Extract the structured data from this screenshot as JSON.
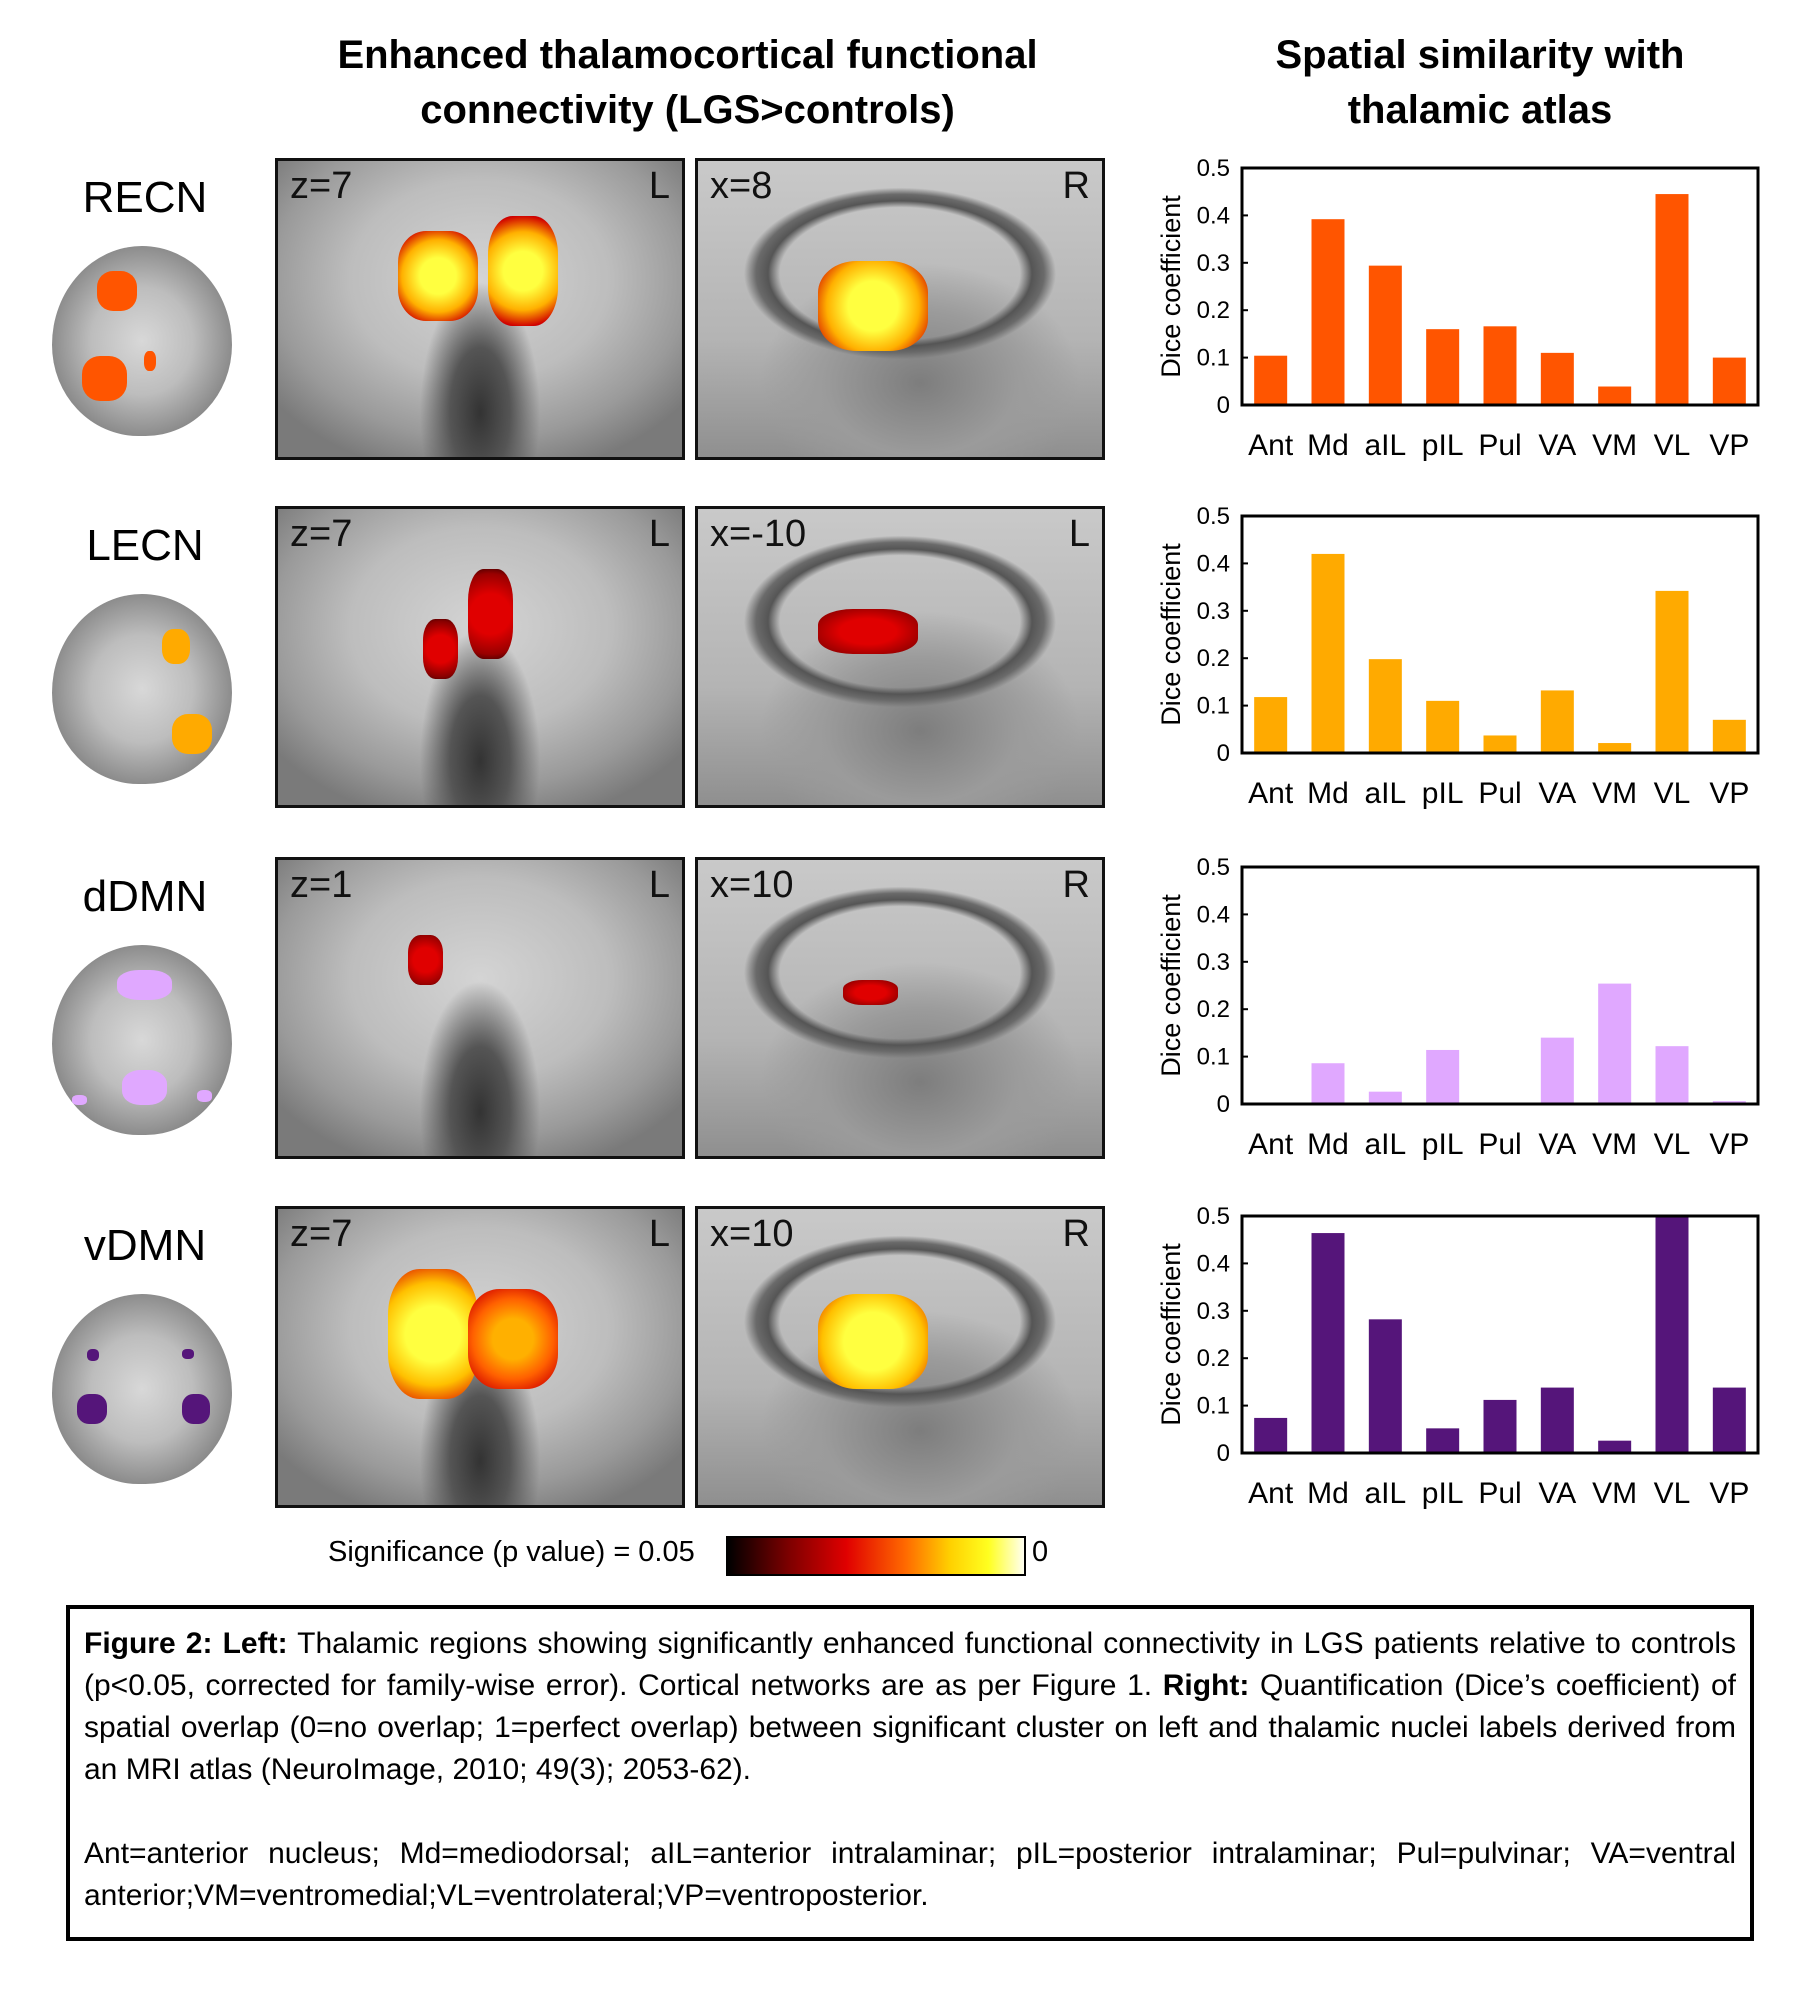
{
  "titles": {
    "left_line1": "Enhanced thalamocortical functional",
    "left_line2": "connectivity (LGS>controls)",
    "right_line1": "Spatial similarity with",
    "right_line2": "thalamic atlas"
  },
  "rows": [
    {
      "network": "RECN",
      "color": "#FF5500",
      "axial_label": "z=7",
      "axial_side": "L",
      "sagittal_label": "x=8",
      "sagittal_side": "R"
    },
    {
      "network": "LECN",
      "color": "#FFAA00",
      "axial_label": "z=7",
      "axial_side": "L",
      "sagittal_label": "x=-10",
      "sagittal_side": "L"
    },
    {
      "network": "dDMN",
      "color": "#E0A8FF",
      "axial_label": "z=1",
      "axial_side": "L",
      "sagittal_label": "x=10",
      "sagittal_side": "R"
    },
    {
      "network": "vDMN",
      "color": "#55157A",
      "axial_label": "z=7",
      "axial_side": "L",
      "sagittal_label": "x=10",
      "sagittal_side": "R"
    }
  ],
  "colorbar": {
    "label": "Significance (p value) = 0.05",
    "max_label": "0"
  },
  "chart_data": [
    {
      "type": "bar",
      "network": "RECN",
      "ylabel": "Dice coefficient",
      "ylim": [
        0,
        0.5
      ],
      "yticks": [
        "0",
        "0.1",
        "0.2",
        "0.3",
        "0.4",
        "0.5"
      ],
      "color": "#FF5500",
      "categories": [
        "Ant",
        "Md",
        "aIL",
        "pIL",
        "Pul",
        "VA",
        "VM",
        "VL",
        "VP"
      ],
      "values": [
        0.104,
        0.392,
        0.294,
        0.16,
        0.166,
        0.11,
        0.039,
        0.445,
        0.1
      ]
    },
    {
      "type": "bar",
      "network": "LECN",
      "ylabel": "Dice coefficient",
      "ylim": [
        0,
        0.5
      ],
      "yticks": [
        "0",
        "0.1",
        "0.2",
        "0.3",
        "0.4",
        "0.5"
      ],
      "color": "#FFAA00",
      "categories": [
        "Ant",
        "Md",
        "aIL",
        "pIL",
        "Pul",
        "VA",
        "VM",
        "VL",
        "VP"
      ],
      "values": [
        0.118,
        0.42,
        0.198,
        0.11,
        0.037,
        0.132,
        0.021,
        0.342,
        0.07
      ]
    },
    {
      "type": "bar",
      "network": "dDMN",
      "ylabel": "Dice coefficient",
      "ylim": [
        0,
        0.5
      ],
      "yticks": [
        "0",
        "0.1",
        "0.2",
        "0.3",
        "0.4",
        "0.5"
      ],
      "color": "#E0A8FF",
      "categories": [
        "Ant",
        "Md",
        "aIL",
        "pIL",
        "Pul",
        "VA",
        "VM",
        "VL",
        "VP"
      ],
      "values": [
        0,
        0.086,
        0.026,
        0.114,
        0,
        0.14,
        0.254,
        0.122,
        0.006
      ]
    },
    {
      "type": "bar",
      "network": "vDMN",
      "ylabel": "Dice coefficient",
      "ylim": [
        0,
        0.5
      ],
      "yticks": [
        "0",
        "0.1",
        "0.2",
        "0.3",
        "0.4",
        "0.5"
      ],
      "color": "#55157A",
      "categories": [
        "Ant",
        "Md",
        "aIL",
        "pIL",
        "Pul",
        "VA",
        "VM",
        "VL",
        "VP"
      ],
      "values": [
        0.074,
        0.464,
        0.282,
        0.052,
        0.112,
        0.138,
        0.026,
        0.5,
        0.138
      ]
    }
  ],
  "caption": {
    "fig_label": "Figure 2:",
    "left_label": "Left:",
    "left_text": " Thalamic regions showing significantly enhanced functional connectivity in LGS patients relative to controls (p<0.05, corrected for family-wise error). Cortical networks are as per Figure 1. ",
    "right_label": "Right:",
    "right_text": " Quantification (Dice’s coefficient) of spatial overlap (0=no overlap; 1=perfect overlap) between significant cluster on left and thalamic nuclei labels derived from an MRI atlas (NeuroImage, 2010; 49(3); 2053-62).",
    "abbreviations": "Ant=anterior nucleus; Md=mediodorsal; aIL=anterior intralaminar; pIL=posterior intralaminar; Pul=pulvinar; VA=ventral anterior;VM=ventromedial;VL=ventrolateral;VP=ventroposterior."
  }
}
